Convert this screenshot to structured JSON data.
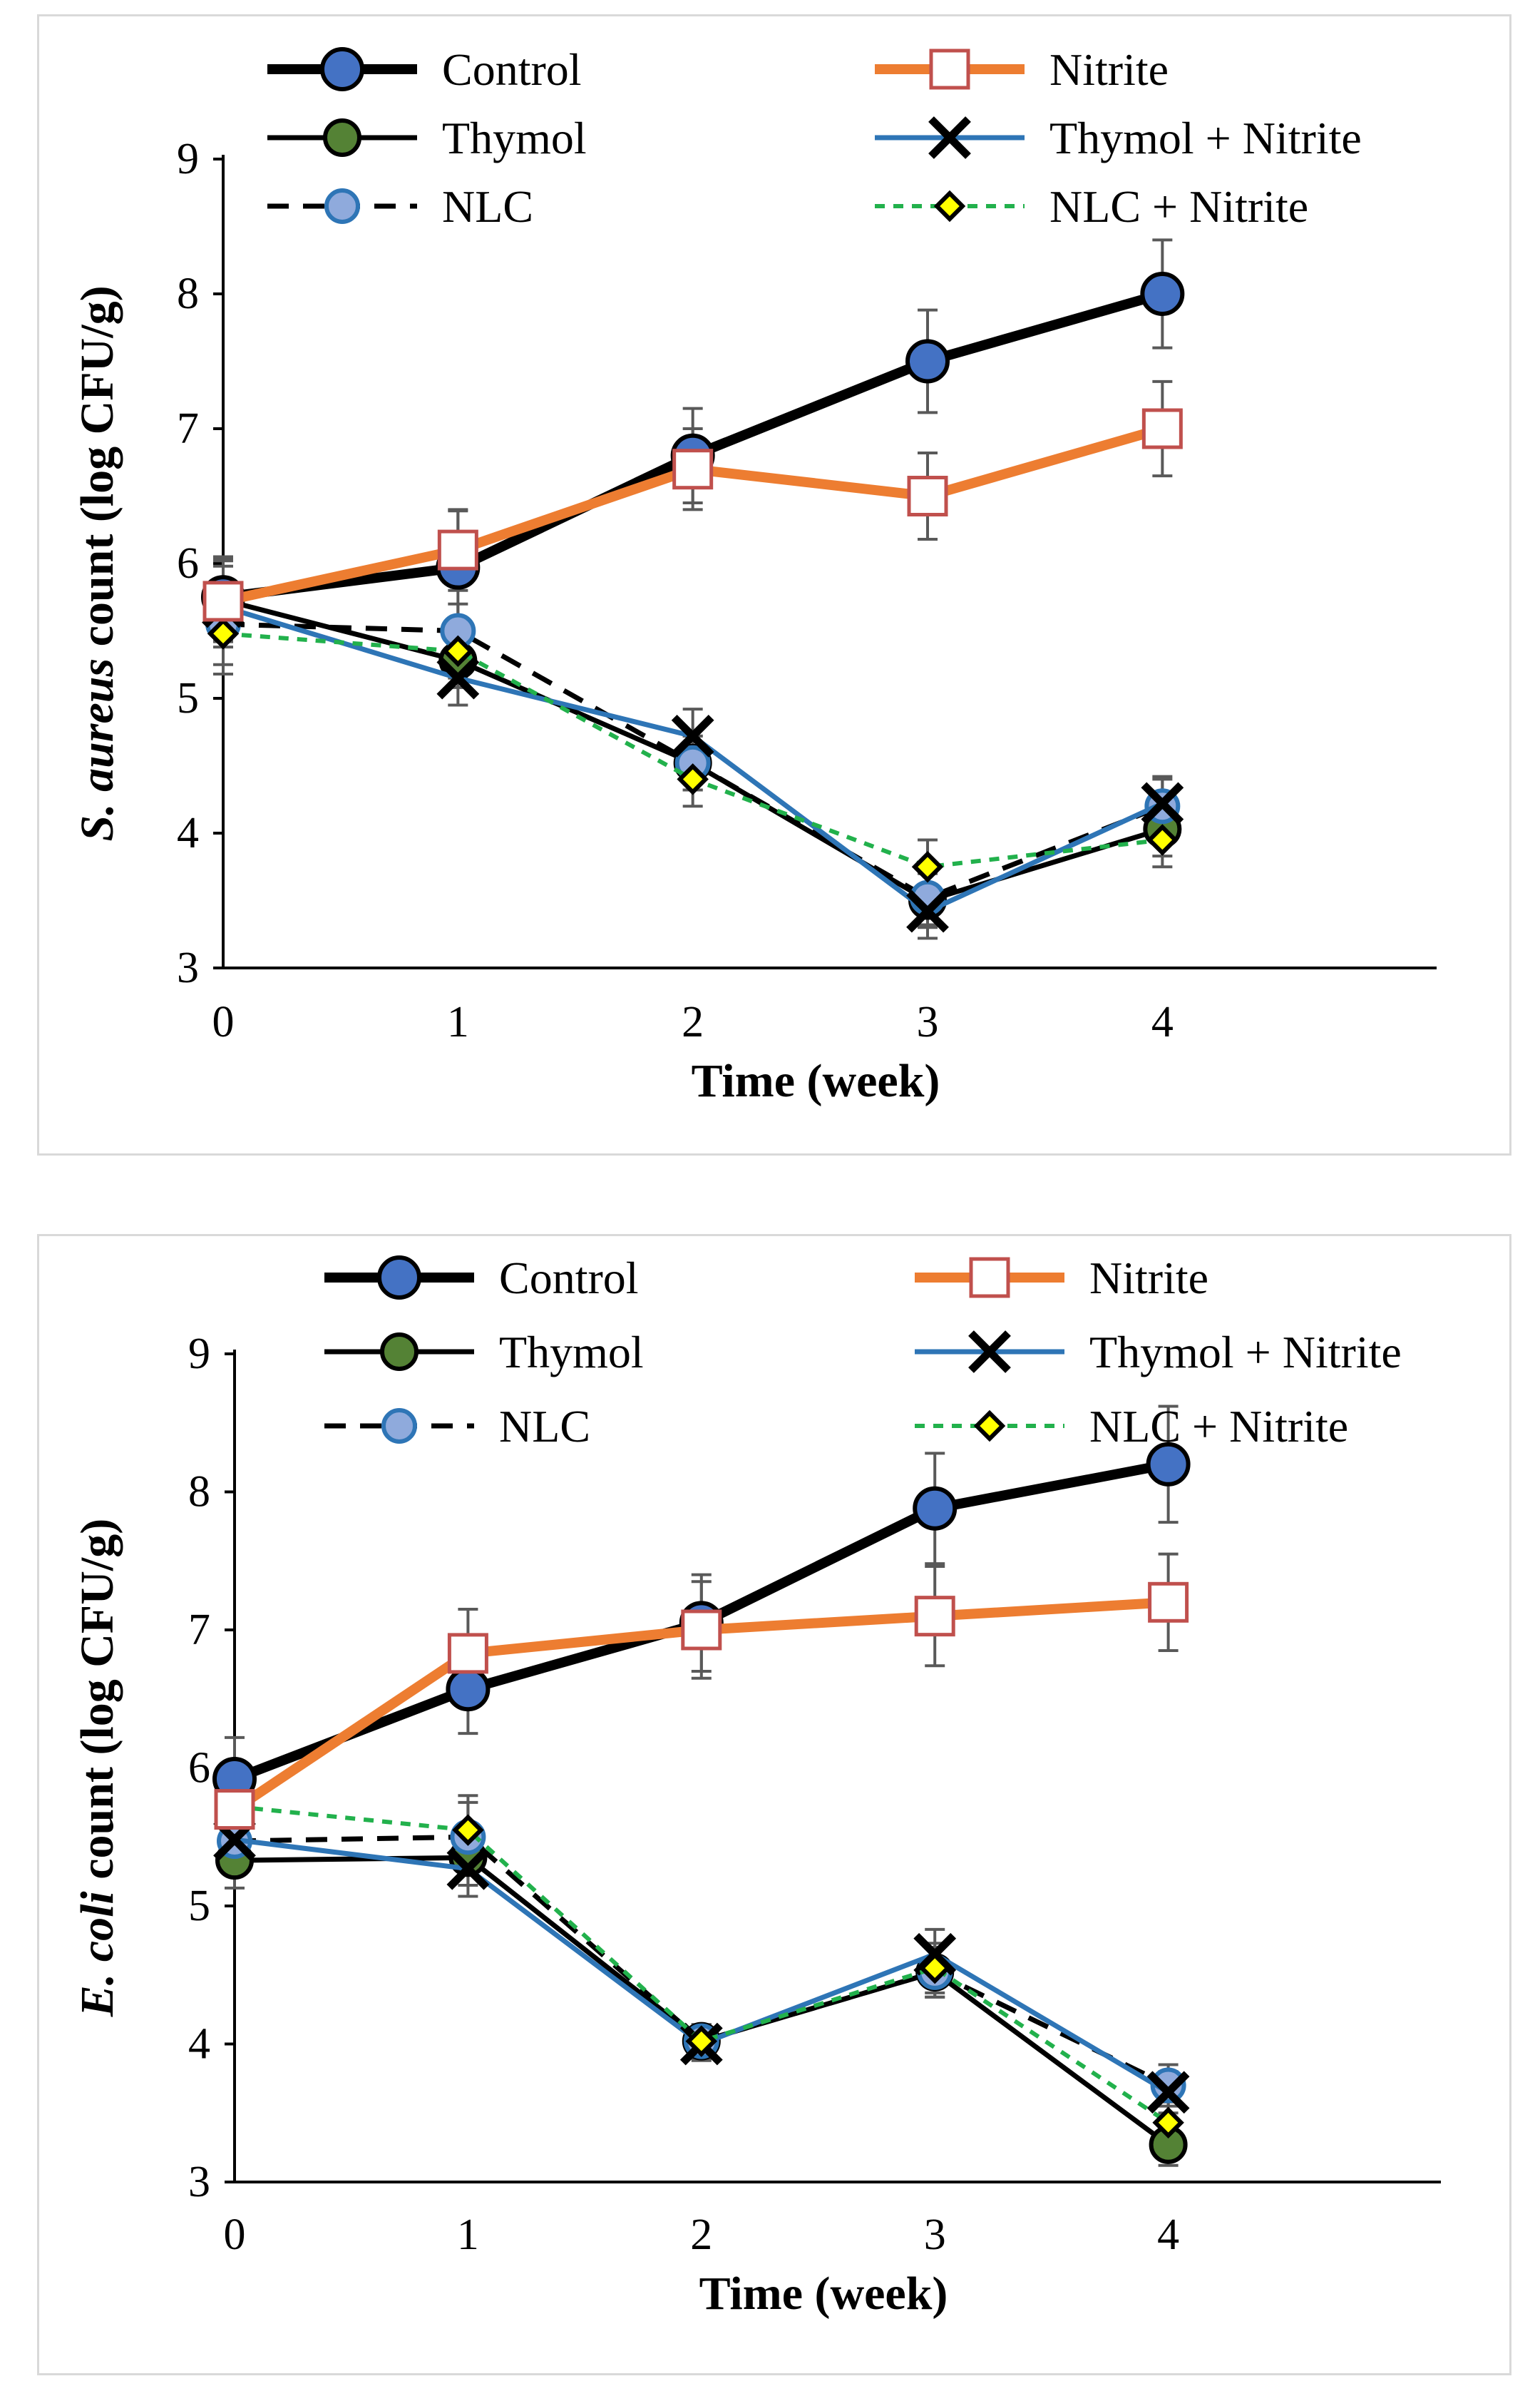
{
  "chart_data": [
    {
      "type": "line",
      "title": "",
      "xlabel": "Time (week)",
      "ylabel_italic": "S. aureus",
      "ylabel_rest": " count (log CFU/g)",
      "x": [
        0,
        1,
        2,
        3,
        4
      ],
      "xticks": [
        "0",
        "1",
        "2",
        "3",
        "4"
      ],
      "ylim": [
        3,
        9
      ],
      "yticks": [
        "3",
        "4",
        "5",
        "6",
        "7",
        "8",
        "9"
      ],
      "legend_placement": "top",
      "series": [
        {
          "name": "Control",
          "values": [
            5.75,
            5.97,
            6.8,
            7.5,
            8.0
          ],
          "errors": [
            0.3,
            0.42,
            0.35,
            0.38,
            0.4
          ]
        },
        {
          "name": "Nitrite",
          "values": [
            5.72,
            6.1,
            6.7,
            6.5,
            7.0
          ],
          "errors": [
            0.3,
            0.3,
            0.3,
            0.32,
            0.35
          ]
        },
        {
          "name": "Thymol",
          "values": [
            5.73,
            5.28,
            4.52,
            3.5,
            4.03
          ],
          "errors": [
            0.3,
            0.2,
            0.2,
            0.2,
            0.2
          ]
        },
        {
          "name": "Thymol + Nitrite",
          "values": [
            5.68,
            5.15,
            4.72,
            3.42,
            4.22
          ],
          "errors": [
            0.3,
            0.2,
            0.2,
            0.2,
            0.2
          ]
        },
        {
          "name": "NLC",
          "values": [
            5.55,
            5.5,
            4.52,
            3.52,
            4.2
          ],
          "errors": [
            0.3,
            0.2,
            0.2,
            0.2,
            0.2
          ]
        },
        {
          "name": "NLC + Nitrite",
          "values": [
            5.48,
            5.35,
            4.4,
            3.75,
            3.95
          ],
          "errors": [
            0.3,
            0.2,
            0.2,
            0.2,
            0.2
          ]
        }
      ]
    },
    {
      "type": "line",
      "title": "",
      "xlabel": "Time (week)",
      "ylabel_italic": "E. coli",
      "ylabel_rest": " count (log CFU/g)",
      "x": [
        0,
        1,
        2,
        3,
        4
      ],
      "xticks": [
        "0",
        "1",
        "2",
        "3",
        "4"
      ],
      "ylim": [
        3,
        9
      ],
      "yticks": [
        "3",
        "4",
        "5",
        "6",
        "7",
        "8",
        "9"
      ],
      "legend_placement": "top",
      "series": [
        {
          "name": "Control",
          "values": [
            5.92,
            6.57,
            7.05,
            7.88,
            8.2
          ],
          "errors": [
            0.3,
            0.32,
            0.35,
            0.4,
            0.42
          ]
        },
        {
          "name": "Nitrite",
          "values": [
            5.7,
            6.83,
            7.0,
            7.1,
            7.2
          ],
          "errors": [
            0.3,
            0.32,
            0.35,
            0.36,
            0.35
          ]
        },
        {
          "name": "Thymol",
          "values": [
            5.33,
            5.35,
            4.02,
            4.52,
            3.27
          ],
          "errors": [
            0.2,
            0.2,
            0.12,
            0.18,
            0.15
          ]
        },
        {
          "name": "Thymol + Nitrite",
          "values": [
            5.48,
            5.27,
            4.0,
            4.65,
            3.65
          ],
          "errors": [
            0.2,
            0.2,
            0.12,
            0.18,
            0.15
          ]
        },
        {
          "name": "NLC",
          "values": [
            5.47,
            5.5,
            4.02,
            4.52,
            3.7
          ],
          "errors": [
            0.2,
            0.25,
            0.12,
            0.18,
            0.15
          ]
        },
        {
          "name": "NLC + Nitrite",
          "values": [
            5.72,
            5.55,
            4.02,
            4.55,
            3.43
          ],
          "errors": [
            0.2,
            0.25,
            0.12,
            0.18,
            0.15
          ]
        }
      ]
    }
  ]
}
